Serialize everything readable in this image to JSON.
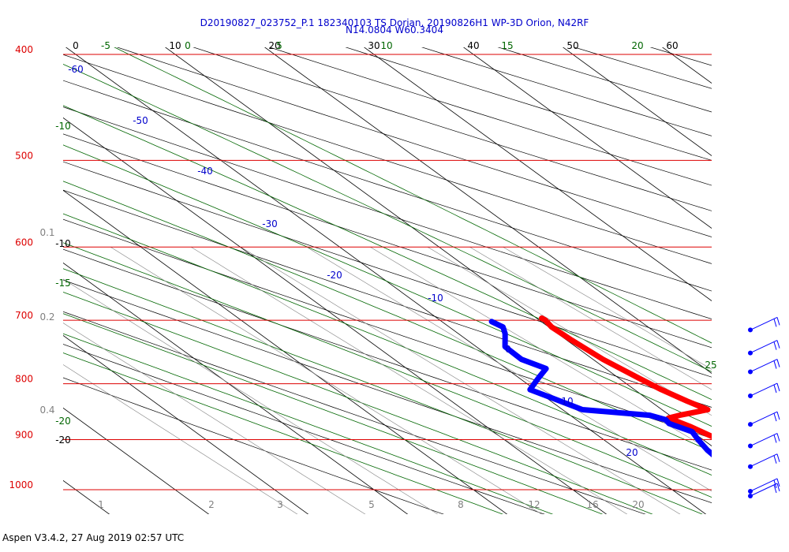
{
  "title_line1": "D20190827_023752_P.1 182340103 TS Dorian, 20190826H1 WP-3D Orion, N42RF",
  "title_line2": "N14.0804 W60.3404",
  "footer": "Aspen V3.4.2, 27 Aug 2019  02:57 UTC",
  "colors": {
    "isobar": "#dd0000",
    "temperature": "#ff0000",
    "dewpoint": "#0000ff",
    "isotherm": "#000000",
    "dry_adiabat": "#000000",
    "moist_adiabat": "#006600",
    "mixing_ratio": "#808080",
    "text_blue": "#0000cc",
    "wind_barb": "#0000ff"
  },
  "chart_data": {
    "type": "skew-t log-p",
    "pressure_levels_hpa": [
      400,
      500,
      600,
      700,
      800,
      900,
      1000
    ],
    "pressure_range_hpa": [
      400,
      1050
    ],
    "temperature_axis_c": [
      0,
      10,
      20,
      30,
      40,
      50,
      60
    ],
    "temperature_range_c": [
      0,
      64
    ],
    "diagonal_isotherm_labels_c": [
      "-60",
      "-50",
      "-40",
      "-30",
      "-20",
      "-10",
      "0",
      "10",
      "20"
    ],
    "left_isotherm_labels": [
      "-10",
      "-20"
    ],
    "moist_adiabat_top_labels": [
      "-5",
      "0",
      "5",
      "10",
      "15",
      "20"
    ],
    "moist_adiabat_left_labels": [
      "-10",
      "-15",
      "-20"
    ],
    "moist_adiabat_right_labels": [
      "25"
    ],
    "mixing_ratio_labels": [
      "1",
      "2",
      "3",
      "5",
      "8",
      "12",
      "16",
      "20"
    ],
    "mixing_ratio_side_labels": [
      "0.1",
      "0.2",
      "0.4"
    ],
    "temperature_profile": [
      {
        "p": 697,
        "t": 10.5
      },
      {
        "p": 700,
        "t": 10.6
      },
      {
        "p": 710,
        "t": 10.3
      },
      {
        "p": 730,
        "t": 10.5
      },
      {
        "p": 760,
        "t": 11.0
      },
      {
        "p": 790,
        "t": 12.0
      },
      {
        "p": 810,
        "t": 12.7
      },
      {
        "p": 830,
        "t": 13.7
      },
      {
        "p": 845,
        "t": 14.6
      },
      {
        "p": 855,
        "t": 11.0
      },
      {
        "p": 860,
        "t": 9.5
      },
      {
        "p": 875,
        "t": 10.5
      },
      {
        "p": 900,
        "t": 11.6
      },
      {
        "p": 925,
        "t": 13.0
      },
      {
        "p": 950,
        "t": 14.6
      },
      {
        "p": 975,
        "t": 16.5
      },
      {
        "p": 990,
        "t": 18.0
      },
      {
        "p": 1000,
        "t": 19.3
      },
      {
        "p": 1008,
        "t": 20.3
      }
    ],
    "dewpoint_profile": [
      {
        "p": 702,
        "t": 5.0
      },
      {
        "p": 710,
        "t": 5.4
      },
      {
        "p": 720,
        "t": 4.7
      },
      {
        "p": 740,
        "t": 2.9
      },
      {
        "p": 760,
        "t": 2.8
      },
      {
        "p": 775,
        "t": 4.0
      },
      {
        "p": 790,
        "t": 2.0
      },
      {
        "p": 810,
        "t": -0.5
      },
      {
        "p": 825,
        "t": 0.6
      },
      {
        "p": 845,
        "t": 2.0
      },
      {
        "p": 855,
        "t": 8.0
      },
      {
        "p": 863,
        "t": 9.0
      },
      {
        "p": 870,
        "t": 8.8
      },
      {
        "p": 885,
        "t": 10.0
      },
      {
        "p": 900,
        "t": 9.5
      },
      {
        "p": 920,
        "t": 9.0
      },
      {
        "p": 940,
        "t": 8.8
      },
      {
        "p": 960,
        "t": 7.6
      },
      {
        "p": 980,
        "t": 6.5
      },
      {
        "p": 1000,
        "t": 7.0
      },
      {
        "p": 1008,
        "t": 8.7
      }
    ],
    "wind_barb_levels_hpa": [
      705,
      740,
      770,
      810,
      860,
      900,
      940,
      990,
      1000
    ],
    "wind_barbs_note": "barbs on right margin"
  }
}
